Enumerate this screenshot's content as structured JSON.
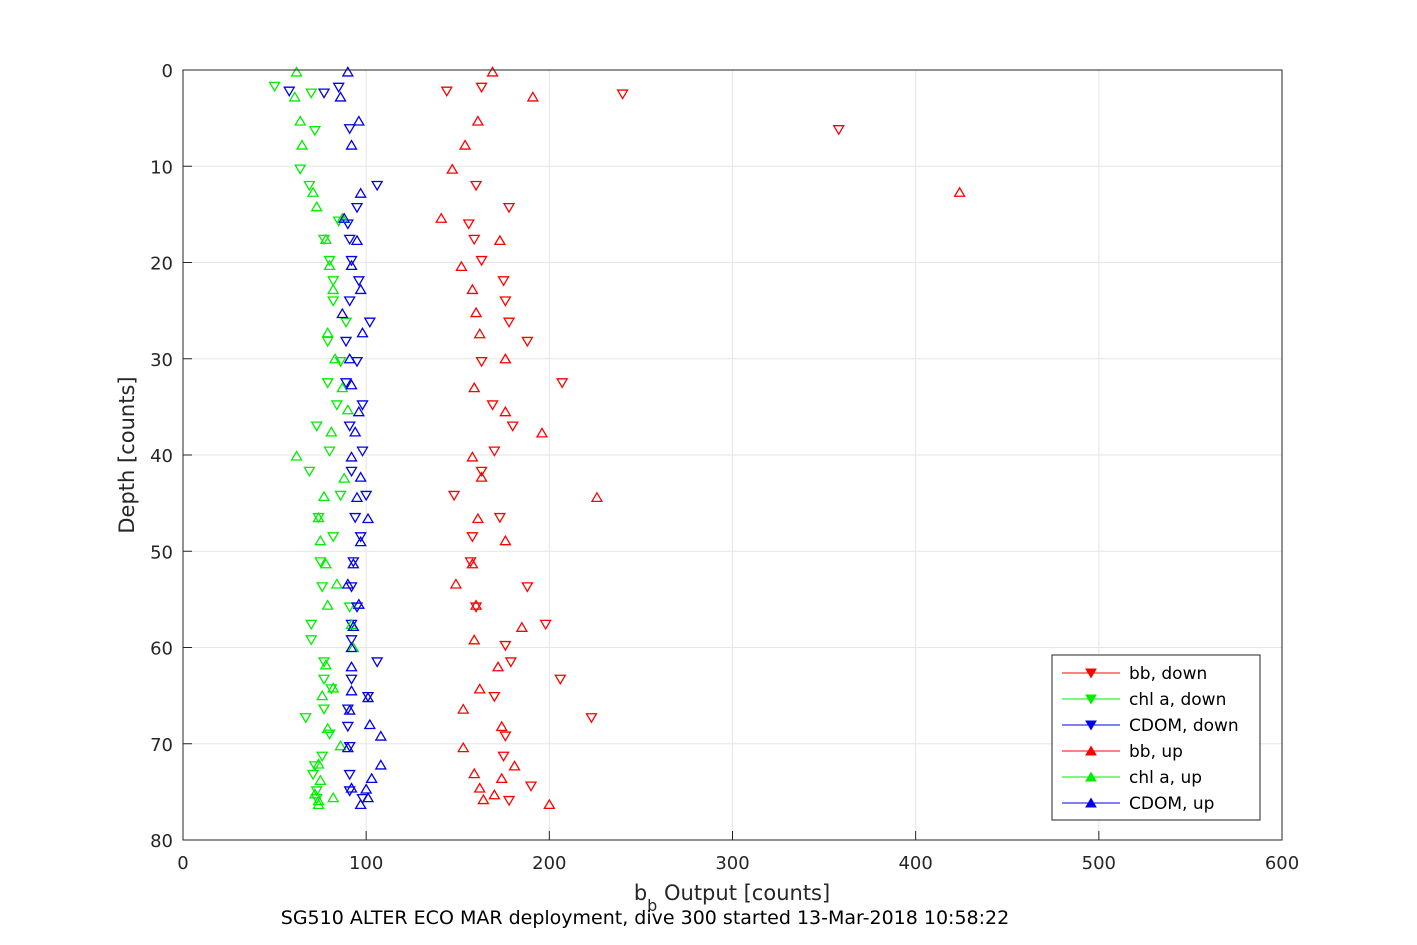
{
  "chart_data": {
    "type": "scatter",
    "xlabel": "b_b Output [counts]",
    "xlabel_main": "b",
    "xlabel_sub": "b",
    "xlabel_rest": " Output [counts]",
    "ylabel": "Depth [counts]",
    "caption": "SG510 ALTER ECO MAR deployment, dive 300 started 13-Mar-2018 10:58:22",
    "xlim": [
      0,
      600
    ],
    "ylim": [
      0,
      80
    ],
    "y_reversed": true,
    "x_ticks": [
      0,
      100,
      200,
      300,
      400,
      500,
      600
    ],
    "y_ticks": [
      0,
      10,
      20,
      30,
      40,
      50,
      60,
      70,
      80
    ],
    "grid": true,
    "legend_position": "bottom-right",
    "series": [
      {
        "name": "bb, down",
        "color": "#ff0000",
        "marker": "triangle-down",
        "points": [
          [
            144,
            2.2
          ],
          [
            163,
            1.8
          ],
          [
            240,
            2.5
          ],
          [
            358,
            6.2
          ],
          [
            160,
            12
          ],
          [
            178,
            14.3
          ],
          [
            156,
            16
          ],
          [
            159,
            17.6
          ],
          [
            163,
            19.8
          ],
          [
            175,
            21.9
          ],
          [
            176,
            24
          ],
          [
            178,
            26.2
          ],
          [
            188,
            28.2
          ],
          [
            163,
            30.3
          ],
          [
            207,
            32.5
          ],
          [
            169,
            34.8
          ],
          [
            180,
            37
          ],
          [
            170,
            39.6
          ],
          [
            163,
            41.7
          ],
          [
            148,
            44.2
          ],
          [
            173,
            46.5
          ],
          [
            158,
            48.5
          ],
          [
            157,
            51.1
          ],
          [
            188,
            53.7
          ],
          [
            160,
            55.8
          ],
          [
            198,
            57.6
          ],
          [
            176,
            59.8
          ],
          [
            179,
            61.5
          ],
          [
            206,
            63.3
          ],
          [
            170,
            65.1
          ],
          [
            223,
            67.3
          ],
          [
            176,
            69.2
          ],
          [
            175,
            71.3
          ],
          [
            190,
            74.4
          ],
          [
            178,
            75.9
          ]
        ]
      },
      {
        "name": "chl a, down",
        "color": "#00ee00",
        "marker": "triangle-down",
        "points": [
          [
            50,
            1.7
          ],
          [
            70,
            2.4
          ],
          [
            72,
            6.3
          ],
          [
            64,
            10.3
          ],
          [
            69,
            12
          ],
          [
            85,
            15.7
          ],
          [
            77,
            17.6
          ],
          [
            80,
            19.8
          ],
          [
            82,
            21.9
          ],
          [
            82,
            24
          ],
          [
            89,
            26.2
          ],
          [
            79,
            28.2
          ],
          [
            86,
            30.3
          ],
          [
            79,
            32.5
          ],
          [
            84,
            34.8
          ],
          [
            73,
            37
          ],
          [
            80,
            39.6
          ],
          [
            69,
            41.7
          ],
          [
            86,
            44.2
          ],
          [
            74,
            46.5
          ],
          [
            82,
            48.5
          ],
          [
            75,
            51.1
          ],
          [
            76,
            53.7
          ],
          [
            91,
            55.8
          ],
          [
            70,
            57.6
          ],
          [
            70,
            59.2
          ],
          [
            77,
            61.5
          ],
          [
            77,
            63.3
          ],
          [
            81,
            64.3
          ],
          [
            77,
            66.4
          ],
          [
            67,
            67.3
          ],
          [
            80,
            69
          ],
          [
            76,
            71.3
          ],
          [
            72,
            72.3
          ],
          [
            71,
            73.2
          ],
          [
            73,
            74.9
          ],
          [
            73,
            75.7
          ]
        ]
      },
      {
        "name": "CDOM, down",
        "color": "#0000ee",
        "marker": "triangle-down",
        "points": [
          [
            58,
            2.2
          ],
          [
            77,
            2.4
          ],
          [
            85,
            1.8
          ],
          [
            91,
            6.1
          ],
          [
            106,
            12
          ],
          [
            95,
            14.3
          ],
          [
            90,
            16
          ],
          [
            91,
            17.6
          ],
          [
            92,
            19.8
          ],
          [
            96,
            21.9
          ],
          [
            91,
            24
          ],
          [
            102,
            26.2
          ],
          [
            89,
            28.2
          ],
          [
            95,
            30.3
          ],
          [
            89,
            32.5
          ],
          [
            98,
            34.8
          ],
          [
            91,
            37
          ],
          [
            98,
            39.6
          ],
          [
            92,
            41.7
          ],
          [
            100,
            44.2
          ],
          [
            94,
            46.5
          ],
          [
            97,
            48.5
          ],
          [
            93,
            51.1
          ],
          [
            92,
            53.7
          ],
          [
            95,
            55.8
          ],
          [
            92,
            57.6
          ],
          [
            92,
            59.2
          ],
          [
            106,
            61.5
          ],
          [
            92,
            63.3
          ],
          [
            101,
            65.1
          ],
          [
            90,
            66.4
          ],
          [
            90,
            68.2
          ],
          [
            91,
            70.3
          ],
          [
            91,
            73.2
          ],
          [
            91,
            74.9
          ],
          [
            98,
            75.7
          ]
        ]
      },
      {
        "name": "bb, up",
        "color": "#ff0000",
        "marker": "triangle-up",
        "points": [
          [
            169,
            0.2
          ],
          [
            191,
            2.8
          ],
          [
            161,
            5.3
          ],
          [
            154,
            7.8
          ],
          [
            147,
            10.3
          ],
          [
            424,
            12.7
          ],
          [
            141,
            15.4
          ],
          [
            173,
            17.7
          ],
          [
            152,
            20.4
          ],
          [
            158,
            22.8
          ],
          [
            160,
            25.2
          ],
          [
            162,
            27.4
          ],
          [
            176,
            30
          ],
          [
            159,
            33
          ],
          [
            176,
            35.5
          ],
          [
            196,
            37.7
          ],
          [
            158,
            40.2
          ],
          [
            163,
            42.3
          ],
          [
            226,
            44.4
          ],
          [
            161,
            46.6
          ],
          [
            176,
            48.9
          ],
          [
            158,
            51.3
          ],
          [
            149,
            53.4
          ],
          [
            160,
            55.6
          ],
          [
            185,
            57.9
          ],
          [
            159,
            59.2
          ],
          [
            172,
            62
          ],
          [
            162,
            64.3
          ],
          [
            153,
            66.4
          ],
          [
            174,
            68.2
          ],
          [
            153,
            70.4
          ],
          [
            159,
            73.1
          ],
          [
            181,
            72.3
          ],
          [
            174,
            73.6
          ],
          [
            162,
            74.6
          ],
          [
            170,
            75.3
          ],
          [
            164,
            75.8
          ],
          [
            200,
            76.3
          ]
        ]
      },
      {
        "name": "chl a, up",
        "color": "#00ee00",
        "marker": "triangle-up",
        "points": [
          [
            62,
            0.2
          ],
          [
            61,
            2.8
          ],
          [
            64,
            5.3
          ],
          [
            65,
            7.8
          ],
          [
            71,
            12.7
          ],
          [
            73,
            14.2
          ],
          [
            87,
            15.4
          ],
          [
            78,
            17.6
          ],
          [
            80,
            20.3
          ],
          [
            82,
            22.8
          ],
          [
            79,
            27.3
          ],
          [
            83,
            30
          ],
          [
            87,
            33
          ],
          [
            90,
            35.3
          ],
          [
            81,
            37.6
          ],
          [
            62,
            40.1
          ],
          [
            88,
            42.4
          ],
          [
            77,
            44.3
          ],
          [
            74,
            46.5
          ],
          [
            75,
            48.9
          ],
          [
            78,
            51.3
          ],
          [
            84,
            53.4
          ],
          [
            79,
            55.6
          ],
          [
            92,
            57.6
          ],
          [
            93,
            60
          ],
          [
            78,
            61.8
          ],
          [
            82,
            64.2
          ],
          [
            76,
            65
          ],
          [
            79,
            68.4
          ],
          [
            86,
            70.2
          ],
          [
            74,
            72.1
          ],
          [
            75,
            73.8
          ],
          [
            72,
            75.2
          ],
          [
            74,
            75.9
          ],
          [
            82,
            75.6
          ],
          [
            74,
            76.3
          ]
        ]
      },
      {
        "name": "CDOM, up",
        "color": "#0000ee",
        "marker": "triangle-up",
        "points": [
          [
            90,
            0.2
          ],
          [
            86,
            2.8
          ],
          [
            96,
            5.3
          ],
          [
            92,
            7.8
          ],
          [
            97,
            12.8
          ],
          [
            88,
            15.4
          ],
          [
            95,
            17.7
          ],
          [
            92,
            20.3
          ],
          [
            97,
            22.8
          ],
          [
            87,
            25.3
          ],
          [
            98,
            27.3
          ],
          [
            91,
            30
          ],
          [
            92,
            32.7
          ],
          [
            96,
            35.5
          ],
          [
            94,
            37.6
          ],
          [
            92,
            40.2
          ],
          [
            97,
            42.3
          ],
          [
            95,
            44.4
          ],
          [
            101,
            46.6
          ],
          [
            97,
            49
          ],
          [
            93,
            51.3
          ],
          [
            90,
            53.4
          ],
          [
            96,
            55.5
          ],
          [
            93,
            57.8
          ],
          [
            92,
            60
          ],
          [
            92,
            62
          ],
          [
            92,
            64.5
          ],
          [
            101,
            65.2
          ],
          [
            91,
            66.5
          ],
          [
            102,
            68
          ],
          [
            108,
            69.2
          ],
          [
            90,
            70.4
          ],
          [
            108,
            72.2
          ],
          [
            103,
            73.6
          ],
          [
            92,
            74.6
          ],
          [
            100,
            74.7
          ],
          [
            101,
            75.6
          ],
          [
            97,
            76.3
          ]
        ]
      }
    ]
  }
}
